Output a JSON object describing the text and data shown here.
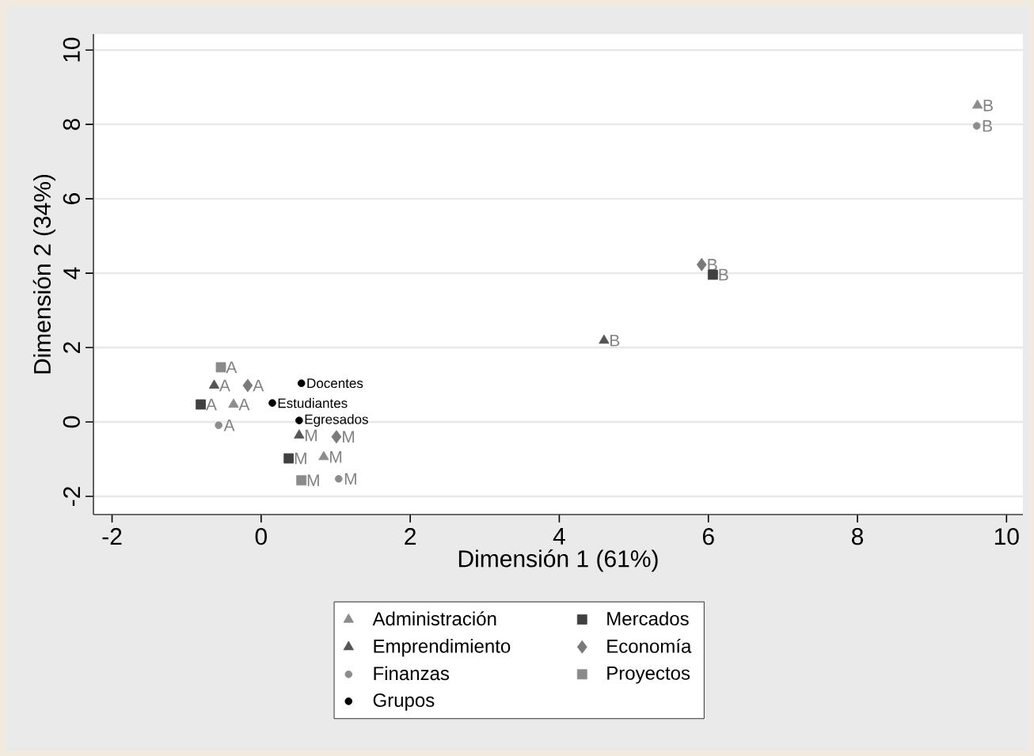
{
  "chart_data": {
    "type": "scatter",
    "xlabel": "Dimensión 1 (61%)",
    "ylabel": "Dimensión 2 (34%)",
    "xlim": [
      -2.25,
      10.22
    ],
    "ylim": [
      -2.49,
      10.43
    ],
    "xticks": [
      -2,
      0,
      2,
      4,
      6,
      8,
      10
    ],
    "yticks": [
      -2,
      0,
      2,
      4,
      6,
      8,
      10
    ],
    "grid": "y",
    "legend": "bottom",
    "series": [
      {
        "name": "Administración",
        "color": "#8c8c8c",
        "marker": "triangle",
        "x": [
          -0.37,
          0.84,
          9.61
        ],
        "values": [
          0.47,
          -0.94,
          8.51
        ],
        "value_labels": [
          "A",
          "M",
          "B"
        ]
      },
      {
        "name": "Emprendimiento",
        "color": "#555555",
        "marker": "triangle",
        "x": [
          -0.63,
          0.51,
          4.6
        ],
        "values": [
          0.98,
          -0.36,
          2.19
        ],
        "value_labels": [
          "A",
          "M",
          "B"
        ]
      },
      {
        "name": "Finanzas",
        "color": "#8c8c8c",
        "marker": "circle",
        "x": [
          -0.57,
          1.04,
          9.6
        ],
        "values": [
          -0.09,
          -1.53,
          7.96
        ],
        "value_labels": [
          "A",
          "M",
          "B"
        ]
      },
      {
        "name": "Grupos",
        "color": "#000000",
        "marker": "circle",
        "x": [
          0.54,
          0.15,
          0.51
        ],
        "values": [
          1.04,
          0.51,
          0.04
        ],
        "value_labels": [
          "Docentes",
          "Estudiantes",
          "Egresados"
        ]
      },
      {
        "name": "Mercados",
        "color": "#404040",
        "marker": "square",
        "x": [
          -0.81,
          0.37,
          6.06
        ],
        "values": [
          0.47,
          -0.98,
          3.96
        ],
        "value_labels": [
          "A",
          "M",
          "B"
        ]
      },
      {
        "name": "Economía",
        "color": "#7a7a7a",
        "marker": "diamond",
        "x": [
          -0.18,
          1.01,
          5.91
        ],
        "values": [
          0.98,
          -0.4,
          4.23
        ],
        "value_labels": [
          "A",
          "M",
          "B"
        ]
      },
      {
        "name": "Proyectos",
        "color": "#8a8a8a",
        "marker": "square",
        "x": [
          -0.54,
          0.54
        ],
        "values": [
          1.47,
          -1.57
        ],
        "value_labels": [
          "A",
          "M"
        ]
      }
    ]
  }
}
